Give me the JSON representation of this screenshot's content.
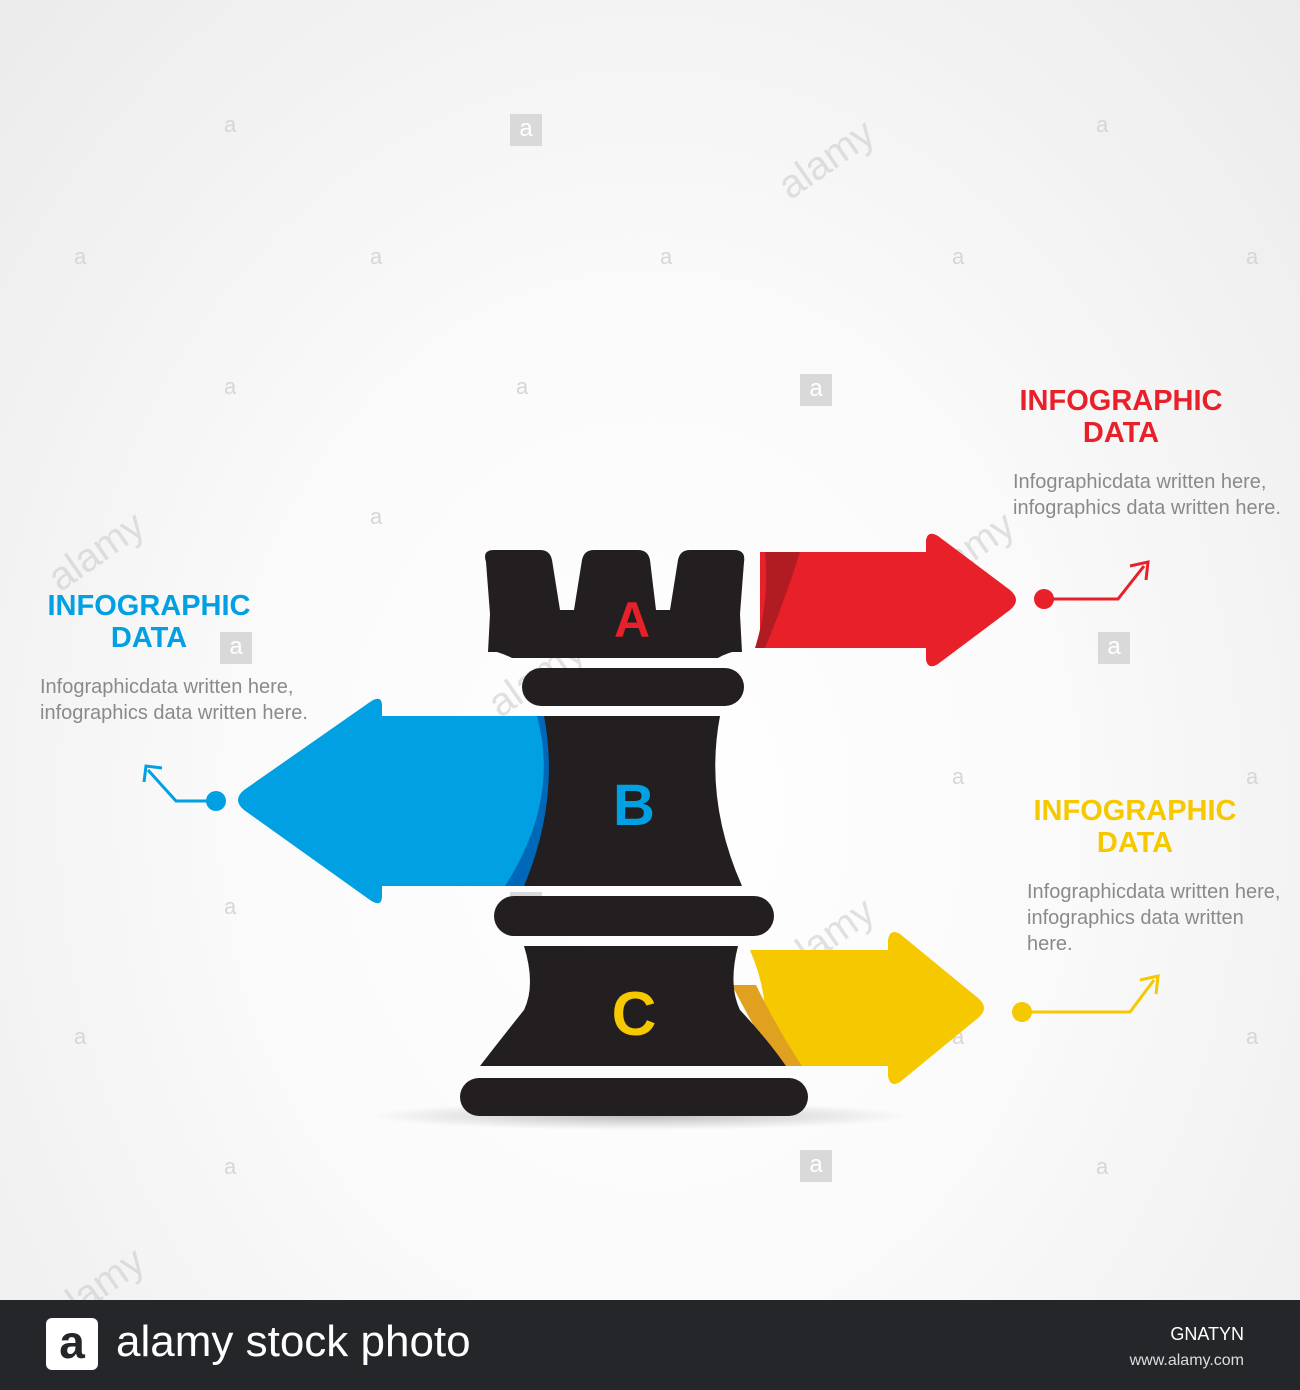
{
  "items": [
    {
      "letter": "A",
      "title_line1": "INFOGRAPHIC",
      "title_line2": "DATA",
      "description": "Infographicdata written here, infographics data written here.",
      "color": "#e8202a"
    },
    {
      "letter": "B",
      "title_line1": "INFOGRAPHIC",
      "title_line2": "DATA",
      "description": "Infographicdata written here, infographics data written here.",
      "color": "#00a0e2"
    },
    {
      "letter": "C",
      "title_line1": "INFOGRAPHIC",
      "title_line2": "DATA",
      "description": "Infographicdata written here, infographics data written here.",
      "color": "#f6c800"
    }
  ],
  "rook_color": "#231f20",
  "footer": {
    "logo_letter": "a",
    "brand": "alamy stock photo",
    "image_id": "GNATYN",
    "site": "www.alamy.com"
  },
  "watermark": {
    "letter": "a",
    "word": "alamy"
  }
}
